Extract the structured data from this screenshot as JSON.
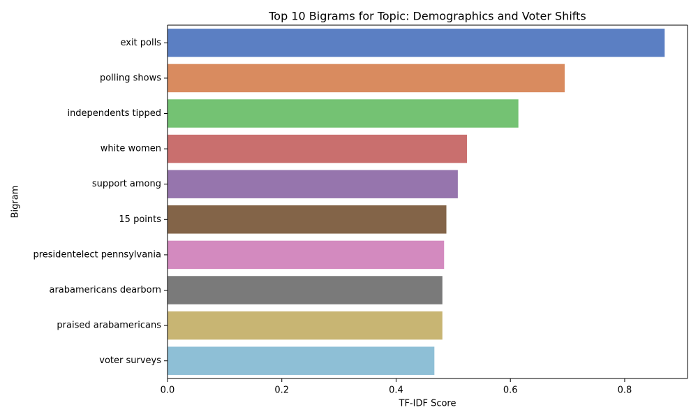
{
  "chart_data": {
    "type": "bar",
    "orientation": "horizontal",
    "title": "Top 10 Bigrams for Topic: Demographics and Voter Shifts",
    "xlabel": "TF-IDF Score",
    "ylabel": "Bigram",
    "xlim": [
      0,
      0.91
    ],
    "xticks": [
      0.0,
      0.2,
      0.4,
      0.6,
      0.8
    ],
    "xtick_labels": [
      "0.0",
      "0.2",
      "0.4",
      "0.6",
      "0.8"
    ],
    "grid": false,
    "legend": "none",
    "categories": [
      "exit polls",
      "polling shows",
      "independents tipped",
      "white women",
      "support among",
      "15 points",
      "presidentelect pennsylvania",
      "arabamericans dearborn",
      "praised arabamericans",
      "voter surveys"
    ],
    "values": [
      0.87,
      0.695,
      0.614,
      0.524,
      0.508,
      0.488,
      0.484,
      0.481,
      0.481,
      0.467
    ],
    "colors": [
      "#5b7fc3",
      "#d98b5f",
      "#74c273",
      "#c96f6e",
      "#9675ad",
      "#836448",
      "#d38abf",
      "#7a7a7a",
      "#c8b573",
      "#8ebfd6"
    ]
  }
}
